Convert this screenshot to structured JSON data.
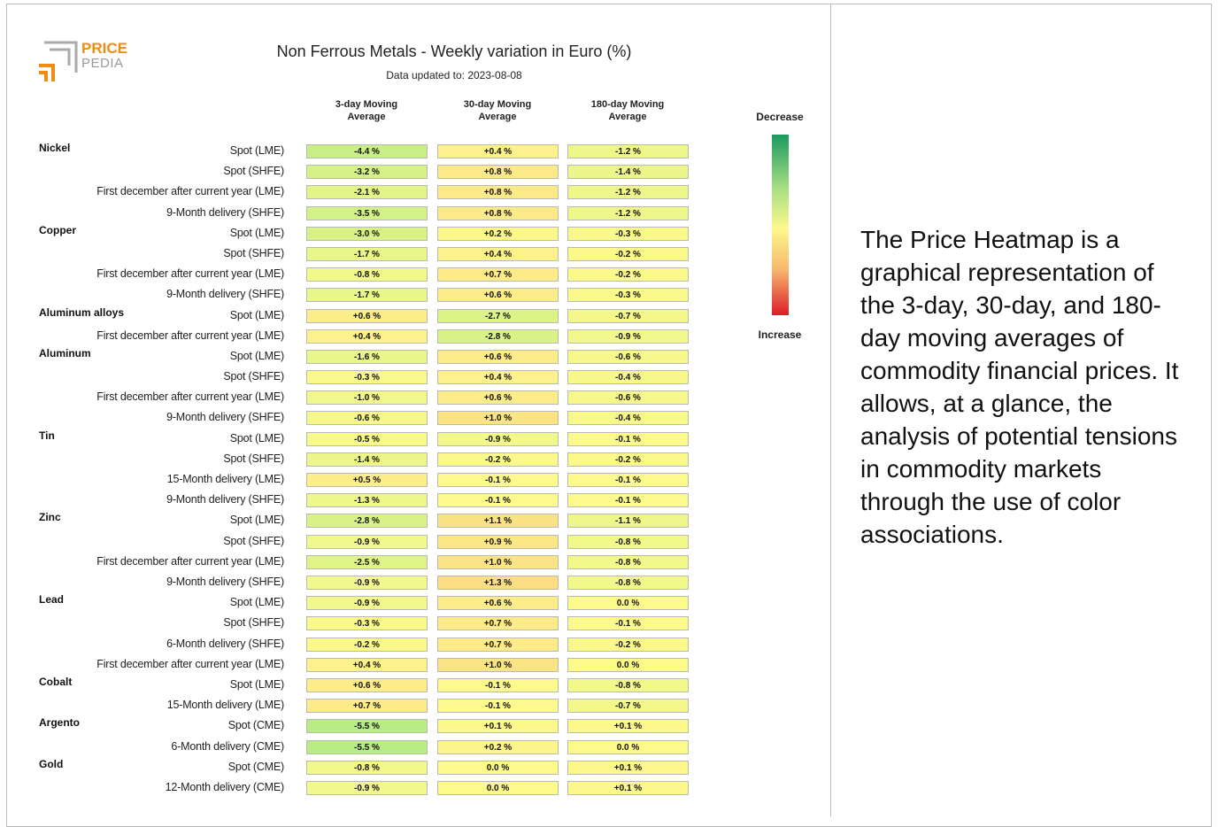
{
  "logo": {
    "part1": "PRICE",
    "part2": "PEDIA"
  },
  "header": {
    "title": "Non Ferrous Metals - Weekly variation in Euro (%)",
    "subtitle": "Data updated to: 2023-08-08"
  },
  "table": {
    "columns": [
      "3-day Moving Average",
      "30-day Moving Average",
      "180-day Moving Average"
    ],
    "groups": [
      {
        "name": "Nickel",
        "rows": [
          {
            "label": "Spot (LME)",
            "cells": [
              "-4.4 %",
              "+0.4 %",
              "-1.2 %"
            ]
          },
          {
            "label": "Spot (SHFE)",
            "cells": [
              "-3.2 %",
              "+0.8 %",
              "-1.4 %"
            ]
          },
          {
            "label": "First december after current year (LME)",
            "cells": [
              "-2.1 %",
              "+0.8 %",
              "-1.2 %"
            ]
          },
          {
            "label": "9-Month delivery (SHFE)",
            "cells": [
              "-3.5 %",
              "+0.8 %",
              "-1.2 %"
            ]
          }
        ]
      },
      {
        "name": "Copper",
        "rows": [
          {
            "label": "Spot (LME)",
            "cells": [
              "-3.0 %",
              "+0.2 %",
              "-0.3 %"
            ]
          },
          {
            "label": "Spot (SHFE)",
            "cells": [
              "-1.7 %",
              "+0.4 %",
              "-0.2 %"
            ]
          },
          {
            "label": "First december after current year (LME)",
            "cells": [
              "-0.8 %",
              "+0.7 %",
              "-0.2 %"
            ]
          },
          {
            "label": "9-Month delivery (SHFE)",
            "cells": [
              "-1.7 %",
              "+0.6 %",
              "-0.3 %"
            ]
          }
        ]
      },
      {
        "name": "Aluminum alloys",
        "rows": [
          {
            "label": "Spot (LME)",
            "cells": [
              "+0.6 %",
              "-2.7 %",
              "-0.7 %"
            ]
          },
          {
            "label": "First december after current year (LME)",
            "cells": [
              "+0.4 %",
              "-2.8 %",
              "-0.9 %"
            ]
          }
        ]
      },
      {
        "name": "Aluminum",
        "rows": [
          {
            "label": "Spot (LME)",
            "cells": [
              "-1.6 %",
              "+0.6 %",
              "-0.6 %"
            ]
          },
          {
            "label": "Spot (SHFE)",
            "cells": [
              "-0.3 %",
              "+0.4 %",
              "-0.4 %"
            ]
          },
          {
            "label": "First december after current year (LME)",
            "cells": [
              "-1.0 %",
              "+0.6 %",
              "-0.6 %"
            ]
          },
          {
            "label": "9-Month delivery (SHFE)",
            "cells": [
              "-0.6 %",
              "+1.0 %",
              "-0.4 %"
            ]
          }
        ]
      },
      {
        "name": "Tin",
        "rows": [
          {
            "label": "Spot (LME)",
            "cells": [
              "-0.5 %",
              "-0.9 %",
              "-0.1 %"
            ]
          },
          {
            "label": "Spot (SHFE)",
            "cells": [
              "-1.4 %",
              "-0.2 %",
              "-0.2 %"
            ]
          },
          {
            "label": "15-Month delivery (LME)",
            "cells": [
              "+0.5 %",
              "-0.1 %",
              "-0.1 %"
            ]
          },
          {
            "label": "9-Month delivery (SHFE)",
            "cells": [
              "-1.3 %",
              "-0.1 %",
              "-0.1 %"
            ]
          }
        ]
      },
      {
        "name": "Zinc",
        "rows": [
          {
            "label": "Spot (LME)",
            "cells": [
              "-2.8 %",
              "+1.1 %",
              "-1.1 %"
            ]
          },
          {
            "label": "Spot (SHFE)",
            "cells": [
              "-0.9 %",
              "+0.9 %",
              "-0.8 %"
            ]
          },
          {
            "label": "First december after current year (LME)",
            "cells": [
              "-2.5 %",
              "+1.0 %",
              "-0.8 %"
            ]
          },
          {
            "label": "9-Month delivery (SHFE)",
            "cells": [
              "-0.9 %",
              "+1.3 %",
              "-0.8 %"
            ]
          }
        ]
      },
      {
        "name": "Lead",
        "rows": [
          {
            "label": "Spot (LME)",
            "cells": [
              "-0.9 %",
              "+0.6 %",
              "0.0 %"
            ]
          },
          {
            "label": "Spot (SHFE)",
            "cells": [
              "-0.3 %",
              "+0.7 %",
              "-0.1 %"
            ]
          },
          {
            "label": "6-Month delivery (SHFE)",
            "cells": [
              "-0.2 %",
              "+0.7 %",
              "-0.2 %"
            ]
          },
          {
            "label": "First december after current year (LME)",
            "cells": [
              "+0.4 %",
              "+1.0 %",
              "0.0 %"
            ]
          }
        ]
      },
      {
        "name": "Cobalt",
        "rows": [
          {
            "label": "Spot (LME)",
            "cells": [
              "+0.6 %",
              "-0.1 %",
              "-0.8 %"
            ]
          },
          {
            "label": "15-Month delivery (LME)",
            "cells": [
              "+0.7 %",
              "-0.1 %",
              "-0.7 %"
            ]
          }
        ]
      },
      {
        "name": "Argento",
        "rows": [
          {
            "label": "Spot (CME)",
            "cells": [
              "-5.5 %",
              "+0.1 %",
              "+0.1 %"
            ]
          },
          {
            "label": "6-Month delivery (CME)",
            "cells": [
              "-5.5 %",
              "+0.2 %",
              "0.0 %"
            ]
          }
        ]
      },
      {
        "name": "Gold",
        "rows": [
          {
            "label": "Spot (CME)",
            "cells": [
              "-0.8 %",
              "0.0 %",
              "+0.1 %"
            ]
          },
          {
            "label": "12-Month delivery (CME)",
            "cells": [
              "-0.9 %",
              "0.0 %",
              "+0.1 %"
            ]
          }
        ]
      }
    ]
  },
  "legend": {
    "top": "Decrease",
    "bottom": "Increase"
  },
  "description": "The Price Heatmap is a graphical representation of the 3-day, 30-day, and 180-day moving averages of commodity financial prices. It allows, at a glance, the analysis of potential tensions in commodity markets through the use of color associations."
}
